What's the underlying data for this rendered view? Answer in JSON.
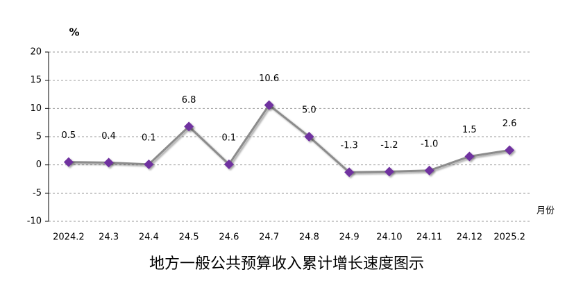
{
  "chart_data": {
    "type": "line",
    "title": "地方一般公共预算收入累计增长速度图示",
    "y_unit": "%",
    "x_label": "月份",
    "categories": [
      "2024.2",
      "24.3",
      "24.4",
      "24.5",
      "24.6",
      "24.7",
      "24.8",
      "24.9",
      "24.10",
      "24.11",
      "24.12",
      "2025.2"
    ],
    "values": [
      0.5,
      0.4,
      0.1,
      6.8,
      0.1,
      10.6,
      5.0,
      -1.3,
      -1.2,
      -1.0,
      1.5,
      2.6
    ],
    "value_labels": [
      "0.5",
      "0.4",
      "0.1",
      "6.8",
      "0.1",
      "10.6",
      "5.0",
      "-1.3",
      "-1.2",
      "-1.0",
      "1.5",
      "2.6"
    ],
    "line_color": "#8c8c8c",
    "marker_color": "#7030a0",
    "ylim": [
      -10,
      20
    ],
    "yticks": [
      -10,
      -5,
      0,
      5,
      10,
      15,
      20
    ],
    "grid": true
  }
}
